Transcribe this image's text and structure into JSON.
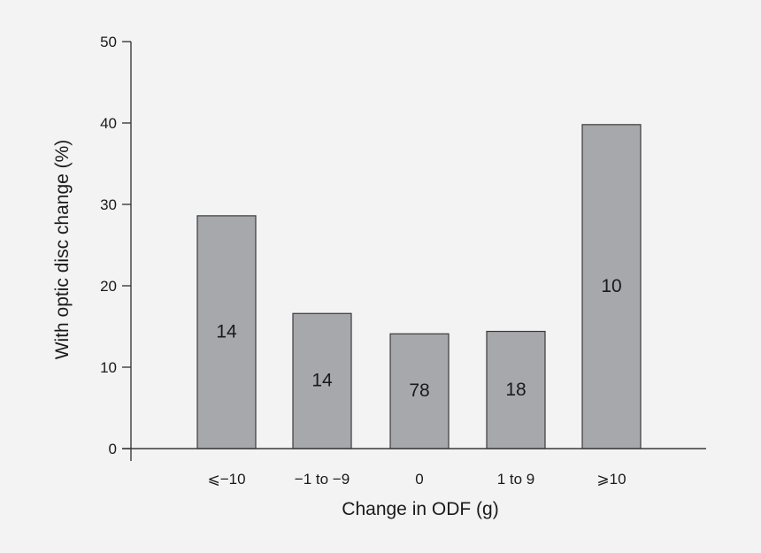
{
  "chart_data": {
    "type": "bar",
    "categories": [
      "⩽−10",
      "−1 to −9",
      "0",
      "1 to 9",
      "⩾10"
    ],
    "values": [
      28.6,
      16.6,
      14.1,
      14.4,
      39.8
    ],
    "bar_labels": [
      "14",
      "14",
      "78",
      "18",
      "10"
    ],
    "xlabel": "Change in ODF (g)",
    "ylabel": "With optic disc change (%)",
    "ylim": [
      0,
      50
    ],
    "yticks": [
      0,
      10,
      20,
      30,
      40,
      50
    ],
    "ytick_labels": [
      "0",
      "10",
      "20",
      "30",
      "40",
      "50"
    ],
    "grid": false,
    "bar_color": "#a7a8ac",
    "bar_edge_color": "#3a3a3a"
  }
}
